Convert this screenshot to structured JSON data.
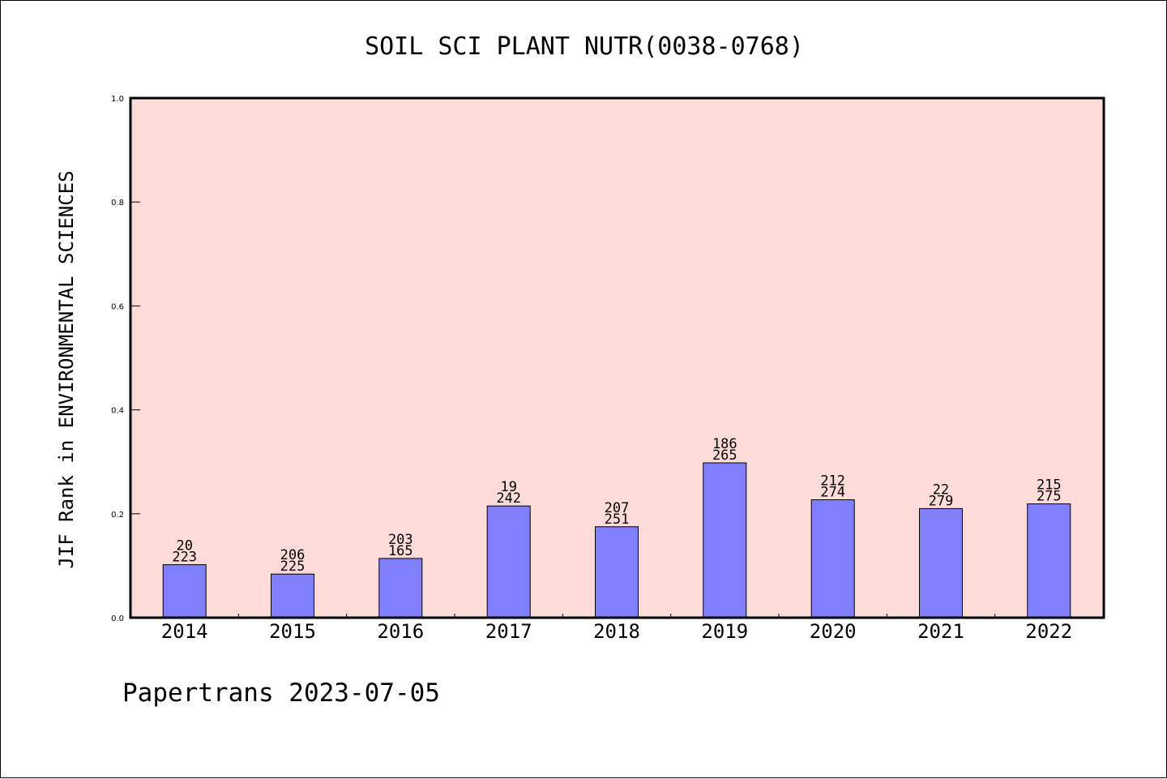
{
  "chart_data": {
    "type": "bar",
    "title": "SOIL SCI PLANT NUTR(0038-0768)",
    "ylabel": "JIF Rank in ENVIRONMENTAL SCIENCES",
    "xlabel": "",
    "ylim": [
      0.0,
      1.0
    ],
    "yticks": [
      "0.0",
      "0.2",
      "0.4",
      "0.6",
      "0.8",
      "1.0"
    ],
    "categories": [
      "2014",
      "2015",
      "2016",
      "2017",
      "2018",
      "2019",
      "2020",
      "2021",
      "2022"
    ],
    "values": [
      0.102,
      0.084,
      0.114,
      0.215,
      0.175,
      0.298,
      0.227,
      0.21,
      0.219
    ],
    "label_top": [
      "20",
      "206",
      "203",
      "19",
      "207",
      "186",
      "212",
      "22",
      "215"
    ],
    "label_bottom": [
      "223",
      "225",
      "165",
      "242",
      "251",
      "265",
      "274",
      "279",
      "275"
    ],
    "grid": false,
    "colors": {
      "plot_bg": "#fddbd8",
      "bar": "#8080ff",
      "frame": "#000000"
    }
  },
  "footer": {
    "text": "Papertrans 2023-07-05"
  }
}
